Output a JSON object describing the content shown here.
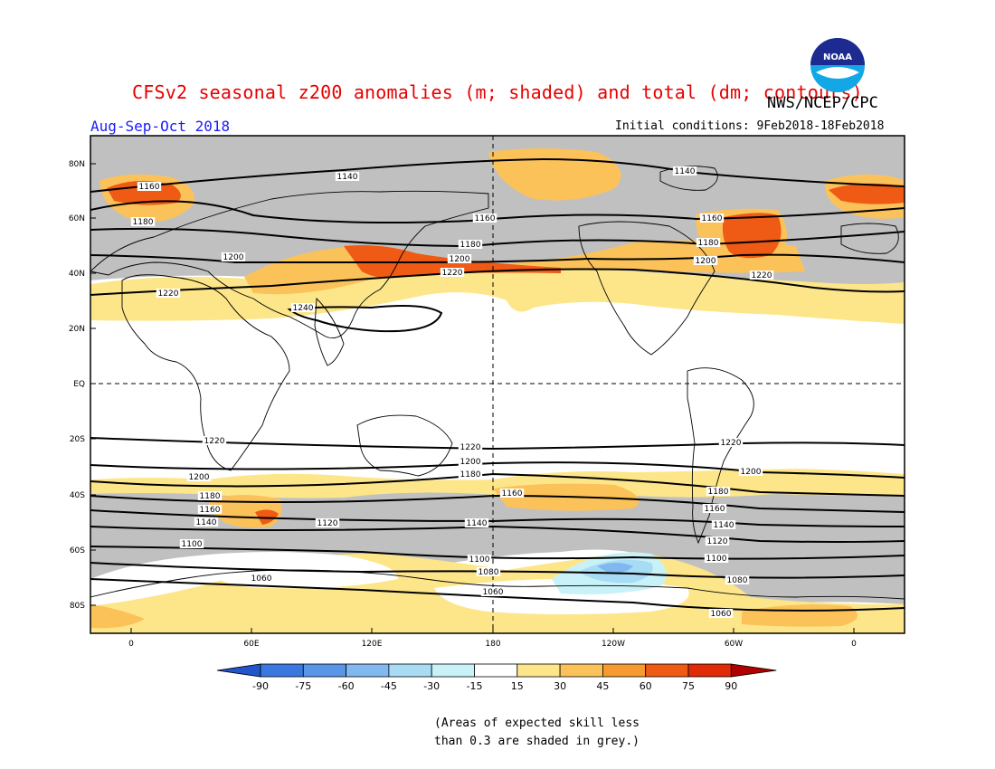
{
  "header": {
    "title": "CFSv2 seasonal z200 anomalies (m; shaded) and total (dm; contours)",
    "agency": "NWS/NCEP/CPC",
    "logo_text": "NOAA",
    "period": "Aug-Sep-Oct 2018",
    "initial_conditions": "Initial conditions: 9Feb2018-18Feb2018"
  },
  "map": {
    "lat_labels": [
      "80N",
      "60N",
      "40N",
      "20N",
      "EQ",
      "20S",
      "40S",
      "60S",
      "80S"
    ],
    "lon_labels": [
      "0",
      "60E",
      "120E",
      "180",
      "120W",
      "60W",
      "0"
    ],
    "contour_labels": [
      "1140",
      "1140",
      "1160",
      "1160",
      "1160",
      "1180",
      "1180",
      "1180",
      "1200",
      "1200",
      "1200",
      "1220",
      "1220",
      "1220",
      "1240",
      "1220",
      "1220",
      "1220",
      "1200",
      "1200",
      "1200",
      "1180",
      "1180",
      "1180",
      "1160",
      "1160",
      "1160",
      "1140",
      "1140",
      "1140",
      "1120",
      "1120",
      "1100",
      "1100",
      "1100",
      "1080",
      "1080",
      "1060",
      "1060",
      "1060"
    ]
  },
  "colorbar": {
    "labels": [
      "-90",
      "-75",
      "-60",
      "-45",
      "-30",
      "-15",
      "15",
      "30",
      "45",
      "60",
      "75",
      "90"
    ],
    "colors": [
      "#2255cc",
      "#3a78e0",
      "#5a96e8",
      "#82b8f0",
      "#a8dcf4",
      "#c8f2f8",
      "#ffffff",
      "#fde68a",
      "#fbc25a",
      "#f79a2f",
      "#ef5a14",
      "#e02a08",
      "#b00000"
    ]
  },
  "footnote": {
    "line1": "(Areas of expected skill less",
    "line2": "than 0.3 are shaded in grey.)"
  }
}
